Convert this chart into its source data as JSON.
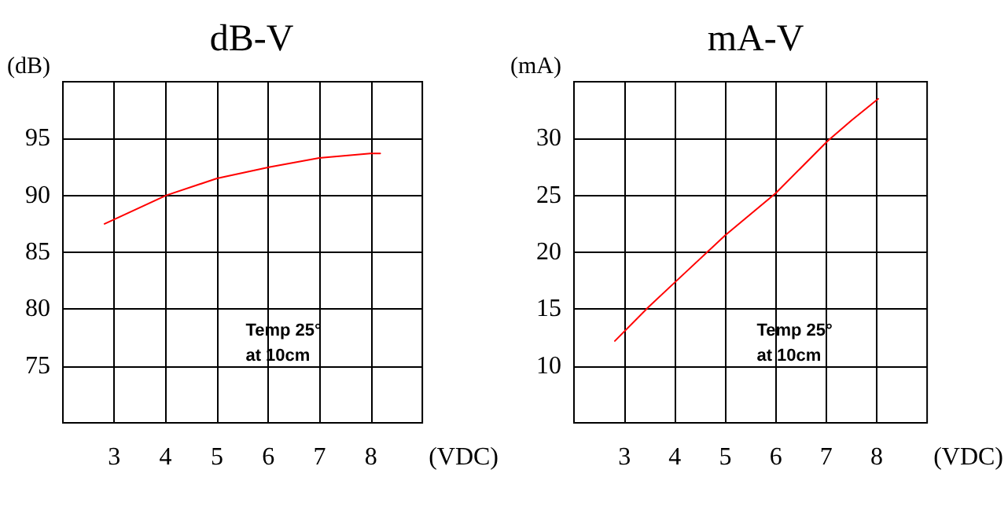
{
  "chart_data": [
    {
      "type": "line",
      "title": "dB-V",
      "xlabel": "(VDC)",
      "ylabel": "(dB)",
      "annotations": [
        "Temp 25°",
        "at 10cm"
      ],
      "xlim": [
        2,
        9
      ],
      "xticks": [
        3,
        4,
        5,
        6,
        7,
        8
      ],
      "ylim": [
        70,
        100
      ],
      "yticks": [
        75,
        80,
        85,
        90,
        95
      ],
      "grid": true,
      "marker": "none",
      "line_style": "solid",
      "series": [
        {
          "color": "#ff0000",
          "x": [
            2.81,
            4.01,
            5.0,
            6.03,
            6.99,
            7.99,
            8.18
          ],
          "values": [
            87.5,
            90.0,
            91.5,
            92.5,
            93.3,
            93.7,
            93.7
          ]
        }
      ]
    },
    {
      "type": "line",
      "title": "mA-V",
      "xlabel": "(VDC)",
      "ylabel": "(mA)",
      "annotations": [
        "Temp 25°",
        "at 10cm"
      ],
      "xlim": [
        2,
        9
      ],
      "xticks": [
        3,
        4,
        5,
        6,
        7,
        8
      ],
      "ylim": [
        5,
        35
      ],
      "yticks": [
        10,
        15,
        20,
        25,
        30
      ],
      "grid": true,
      "marker": "none",
      "line_style": "solid",
      "series": [
        {
          "color": "#ff0000",
          "x": [
            2.81,
            3.48,
            4.01,
            5.0,
            6.0,
            7.03,
            7.5,
            8.03
          ],
          "values": [
            12.2,
            15.2,
            17.4,
            21.5,
            25.2,
            29.8,
            31.6,
            33.5
          ]
        }
      ]
    }
  ]
}
